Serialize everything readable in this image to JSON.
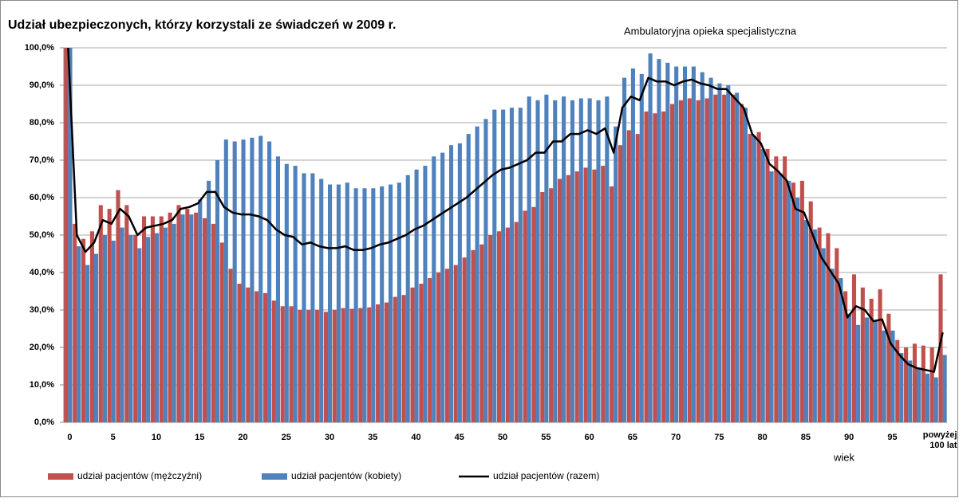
{
  "chart_data": {
    "type": "bar",
    "title": "Udział ubezpieczonych, którzy korzystali ze świadczeń w 2009 r.",
    "subtitle": "Ambulatoryjna opieka specjalistyczna",
    "x_label": "wiek",
    "categories": [
      "0",
      null,
      null,
      null,
      null,
      "5",
      null,
      null,
      null,
      null,
      "10",
      null,
      null,
      null,
      null,
      "15",
      null,
      null,
      null,
      null,
      "20",
      null,
      null,
      null,
      null,
      "25",
      null,
      null,
      null,
      null,
      "30",
      null,
      null,
      null,
      null,
      "35",
      null,
      null,
      null,
      null,
      "40",
      null,
      null,
      null,
      null,
      "45",
      null,
      null,
      null,
      null,
      "50",
      null,
      null,
      null,
      null,
      "55",
      null,
      null,
      null,
      null,
      "60",
      null,
      null,
      null,
      null,
      "65",
      null,
      null,
      null,
      null,
      "70",
      null,
      null,
      null,
      null,
      "75",
      null,
      null,
      null,
      null,
      "80",
      null,
      null,
      null,
      null,
      "85",
      null,
      null,
      null,
      null,
      "90",
      null,
      null,
      null,
      null,
      "95",
      null,
      null,
      null,
      null,
      null,
      "powyżej 100 lat"
    ],
    "series": [
      {
        "name": "udział pacjentów (mężczyźni)",
        "color": "#c0504d",
        "kind": "bar",
        "values": [
          100,
          53,
          49,
          51,
          58,
          57,
          62,
          58,
          50,
          55,
          55,
          55,
          56,
          58,
          57,
          56,
          54.5,
          53,
          48,
          41,
          37,
          36,
          35,
          34.5,
          32.5,
          31,
          31,
          30,
          30,
          30,
          29.5,
          30,
          30.5,
          30.3,
          30.5,
          30.7,
          31.5,
          32,
          33.5,
          34,
          36,
          37,
          38.5,
          40,
          41,
          42,
          44,
          46,
          47.5,
          50,
          51,
          52,
          53.5,
          56.5,
          57.5,
          61.5,
          62.5,
          65,
          66,
          67,
          68,
          67.5,
          68.5,
          63,
          74,
          78,
          77,
          83,
          82.5,
          83,
          85,
          86,
          86.5,
          86,
          86.5,
          87.5,
          87.5,
          87.5,
          85,
          77,
          77.5,
          73,
          71,
          71,
          64,
          64.5,
          59,
          52,
          50.5,
          46.5,
          35,
          39.5,
          36,
          33,
          35.5,
          29,
          22,
          20,
          21,
          20.5,
          20,
          39.5
        ]
      },
      {
        "name": "udział pacjentów (kobiety)",
        "color": "#4f81bd",
        "kind": "bar",
        "values": [
          100,
          47,
          42,
          45,
          50,
          48.5,
          52,
          50,
          46.5,
          49.5,
          50.5,
          52,
          53,
          55.5,
          55.5,
          59.5,
          64.5,
          70,
          75.5,
          75,
          75.5,
          76,
          76.5,
          75,
          71,
          69,
          68.5,
          66.5,
          66.5,
          65,
          63.5,
          63.5,
          64,
          62.5,
          62.5,
          62.5,
          63,
          63.5,
          64,
          66,
          67.5,
          68.5,
          71,
          72,
          74,
          74.5,
          77,
          79,
          81,
          83.5,
          83.5,
          84,
          84,
          87,
          86,
          87.5,
          86,
          87,
          86,
          86.5,
          86.5,
          86,
          87,
          79,
          92,
          94.5,
          93,
          98.5,
          97,
          96,
          95,
          95,
          95,
          93.5,
          92,
          90.5,
          90,
          88,
          84,
          76.5,
          73,
          67,
          66.5,
          64.5,
          60,
          54,
          51.5,
          46.5,
          41,
          38.5,
          29,
          26,
          28,
          27,
          24.5,
          24.5,
          18.5,
          16.5,
          14.5,
          13,
          12,
          18
        ]
      },
      {
        "name": "udział pacjentów (razem)",
        "color": "#000000",
        "kind": "line",
        "values": [
          100,
          50,
          45.5,
          48,
          54,
          53,
          57,
          55,
          50,
          52,
          52.5,
          53,
          54,
          57,
          57.5,
          58.5,
          61.5,
          61.5,
          57.5,
          56,
          55.5,
          55.5,
          55,
          54,
          51.5,
          50,
          49.5,
          47.5,
          48,
          47,
          46.5,
          46.5,
          47,
          46,
          46,
          46.5,
          47.5,
          48,
          49,
          50,
          51.5,
          52.5,
          54,
          55.5,
          57,
          58.5,
          60,
          62,
          64,
          66,
          67.5,
          68,
          69,
          70,
          72,
          72,
          75,
          75,
          77,
          77,
          78,
          77,
          78.5,
          72,
          84,
          87,
          86,
          92,
          91,
          91,
          90,
          91,
          91.5,
          90.5,
          90,
          89,
          89,
          86.5,
          84,
          77,
          74.5,
          69,
          67,
          64.5,
          57,
          56,
          50,
          44,
          40.5,
          37,
          28,
          31,
          30,
          27,
          27.5,
          21,
          18,
          15.5,
          14.5,
          14,
          13.5,
          24
        ]
      }
    ],
    "ylim": [
      0,
      100
    ],
    "yticks": [
      {
        "value": 0,
        "label": "0,0%"
      },
      {
        "value": 10,
        "label": "10,0%"
      },
      {
        "value": 20,
        "label": "20,0%"
      },
      {
        "value": 30,
        "label": "30,0%"
      },
      {
        "value": 40,
        "label": "40,0%"
      },
      {
        "value": 50,
        "label": "50,0%"
      },
      {
        "value": 60,
        "label": "60,0%"
      },
      {
        "value": 70,
        "label": "70,0%"
      },
      {
        "value": 80,
        "label": "80,0%"
      },
      {
        "value": 90,
        "label": "90,0%"
      },
      {
        "value": 100,
        "label": "100,0%"
      }
    ],
    "grid": true,
    "legend": "bottom"
  }
}
